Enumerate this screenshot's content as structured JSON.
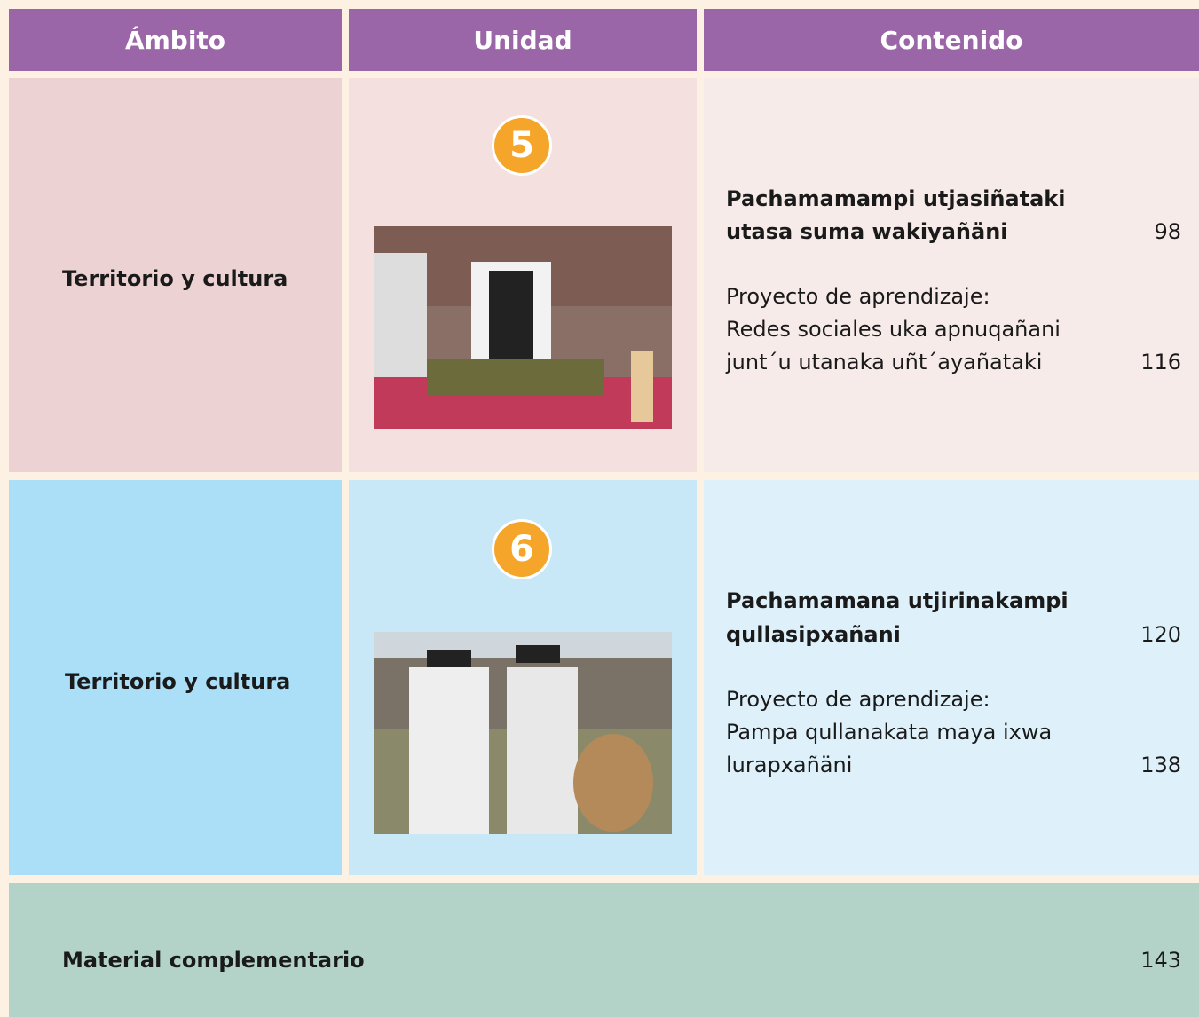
{
  "header": {
    "columns": [
      "Ámbito",
      "Unidad",
      "Contenido"
    ]
  },
  "rows": [
    {
      "ambito": "Territorio y cultura",
      "unidad": "5",
      "lesson": {
        "title": [
          "Pachamamampi utjasiñataki",
          "utasa suma wakiyañäni"
        ],
        "page": 98
      },
      "project": {
        "lines": [
          "Proyecto de aprendizaje:",
          "Redes sociales uka apnuqañani",
          "junt´u utanaka uñt´ayañataki"
        ],
        "page": 116
      }
    },
    {
      "ambito": "Territorio y cultura",
      "unidad": "6",
      "lesson": {
        "title": [
          "Pachamamana utjirinakampi",
          "qullasipxañani"
        ],
        "page": 120
      },
      "project": {
        "lines": [
          "Proyecto de aprendizaje:",
          "Pampa qullanakata maya ixwa",
          "lurapxañäni"
        ],
        "page": 138
      }
    }
  ],
  "footer": {
    "label": "Material complementario",
    "page": 143
  }
}
